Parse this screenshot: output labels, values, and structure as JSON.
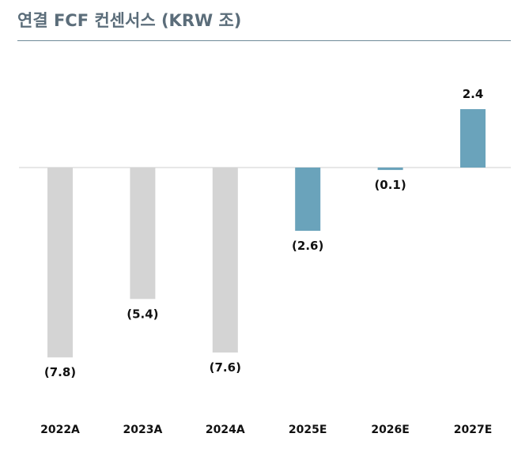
{
  "chart_data": {
    "type": "bar",
    "title": "연결 FCF 컨센서스 (KRW 조)",
    "categories": [
      "2022A",
      "2023A",
      "2024A",
      "2025E",
      "2026E",
      "2027E"
    ],
    "values": [
      -7.8,
      -5.4,
      -7.6,
      -2.6,
      -0.1,
      2.4
    ],
    "value_labels": [
      "(7.8)",
      "(5.4)",
      "(7.6)",
      "(2.6)",
      "(0.1)",
      "2.4"
    ],
    "series_kind": [
      "actual",
      "actual",
      "actual",
      "estimate",
      "estimate",
      "estimate"
    ],
    "xlabel": "",
    "ylabel": "",
    "ylim": [
      -8.5,
      3.0
    ],
    "grid": false,
    "colors": {
      "actual": "#d4d4d4",
      "estimate": "#6aa3bb",
      "zero_line": "#cfcfcf",
      "title": "#5b6d7a",
      "title_rule": "#6f8a99"
    }
  }
}
